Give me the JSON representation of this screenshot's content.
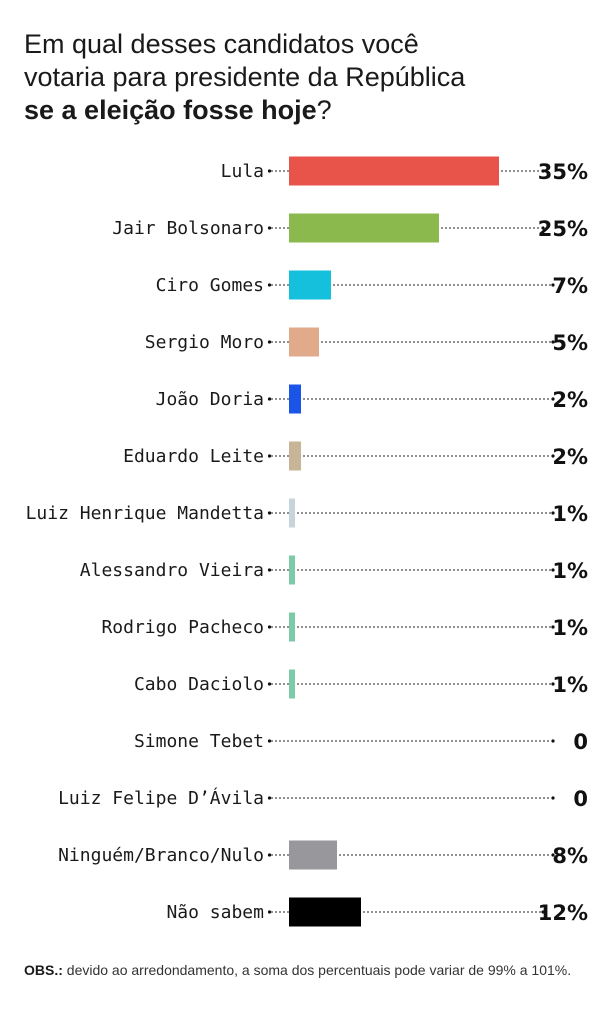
{
  "header": {
    "title_line1": "Em qual desses candidatos você",
    "title_line2": "votaria para presidente da República",
    "title_bold": "se a eleição fosse hoje",
    "title_end": "?"
  },
  "chart_data": {
    "type": "bar",
    "orientation": "horizontal",
    "categories": [
      "Lula",
      "Jair Bolsonaro",
      "Ciro Gomes",
      "Sergio Moro",
      "João Doria",
      "Eduardo Leite",
      "Luiz Henrique Mandetta",
      "Alessandro Vieira",
      "Rodrigo Pacheco",
      "Cabo Daciolo",
      "Simone Tebet",
      "Luiz Felipe D’Ávila",
      "Ninguém/Branco/Nulo",
      "Não sabem"
    ],
    "values": [
      35,
      25,
      7,
      5,
      2,
      2,
      1,
      1,
      1,
      1,
      0,
      0,
      8,
      12
    ],
    "value_labels": [
      "35%",
      "25%",
      "7%",
      "5%",
      "2%",
      "2%",
      "1%",
      "1%",
      "1%",
      "1%",
      "0",
      "0",
      "8%",
      "12%"
    ],
    "colors": [
      "#e8534a",
      "#8cb94e",
      "#14c0dc",
      "#e1aa8a",
      "#1a55e8",
      "#c8b496",
      "#c8d4dc",
      "#7dcaa9",
      "#7dcaa9",
      "#7dcaa9",
      "#ffffff",
      "#ffffff",
      "#97979c",
      "#000000"
    ],
    "xlim": [
      0,
      35
    ],
    "grid": false,
    "legend": "none"
  },
  "footnote": {
    "bold": "OBS.:",
    "text": " devido ao arredondamento, a soma dos percentuais pode variar de 99% a 101%."
  }
}
